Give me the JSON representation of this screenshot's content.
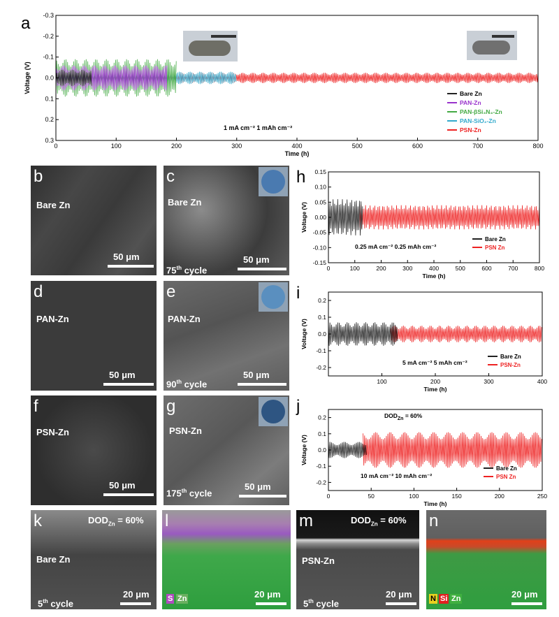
{
  "panel_letters": [
    "a",
    "b",
    "c",
    "d",
    "e",
    "f",
    "g",
    "h",
    "i",
    "j",
    "k",
    "l",
    "m",
    "n"
  ],
  "colors": {
    "bare_zn": "#222222",
    "pan_zn": "#9933cc",
    "pan_bsi3n4_zn": "#44aa44",
    "pan_sio2_zn": "#33aacc",
    "psn_zn": "#ee2222"
  },
  "chart_data": [
    {
      "id": "a",
      "type": "line",
      "xlabel": "Time (h)",
      "ylabel": "Voltage (V)",
      "xlim": [
        0,
        800
      ],
      "ylim": [
        -0.3,
        0.3
      ],
      "y_inverted": true,
      "x_ticks": [
        "0",
        "100",
        "200",
        "300",
        "400",
        "500",
        "600",
        "700",
        "800"
      ],
      "y_ticks": [
        "-0.3",
        "-0.2",
        "-0.1",
        "0.0",
        "0.1",
        "0.2",
        "0.3"
      ],
      "annotation": "1 mA cm⁻²   1 mAh cm⁻²",
      "legend_position": "bottom-right",
      "series": [
        {
          "name": "Bare Zn",
          "end_time": 60,
          "amplitude": 0.04
        },
        {
          "name": "PAN-Zn",
          "end_time": 185,
          "amplitude": 0.06
        },
        {
          "name": "PAN-βSi₃N₄-Zn",
          "end_time": 200,
          "amplitude": 0.09
        },
        {
          "name": "PAN-SiO₂-Zn",
          "end_time": 300,
          "amplitude": 0.03
        },
        {
          "name": "PSN-Zn",
          "end_time": 800,
          "amplitude": 0.025
        }
      ]
    },
    {
      "id": "h",
      "type": "line",
      "xlabel": "Time (h)",
      "ylabel": "Voltage (V)",
      "xlim": [
        0,
        800
      ],
      "ylim": [
        -0.15,
        0.15
      ],
      "x_ticks": [
        "0",
        "100",
        "200",
        "300",
        "400",
        "500",
        "600",
        "700",
        "800"
      ],
      "y_ticks": [
        "0.15",
        "0.10",
        "0.05",
        "0.00",
        "-0.05",
        "-0.10",
        "-0.15"
      ],
      "annotation": "0.25 mA cm⁻²   0.25 mAh cm⁻²",
      "legend_position": "bottom-right",
      "series": [
        {
          "name": "Bare Zn",
          "end_time": 130,
          "amplitude": 0.06
        },
        {
          "name": "PSN Zn",
          "end_time": 800,
          "amplitude": 0.04
        }
      ]
    },
    {
      "id": "i",
      "type": "line",
      "xlabel": "Time (h)",
      "ylabel": "Voltage (V)",
      "xlim": [
        0,
        400
      ],
      "ylim": [
        -0.25,
        0.25
      ],
      "x_ticks": [
        "100",
        "200",
        "300",
        "400"
      ],
      "y_ticks": [
        "0.2",
        "0.1",
        "0.0",
        "-0.1",
        "-0.2"
      ],
      "annotation": "5 mA cm⁻²   5 mAh cm⁻²",
      "legend_position": "bottom-right",
      "series": [
        {
          "name": "Bare Zn",
          "end_time": 130,
          "amplitude": 0.07
        },
        {
          "name": "PSN-Zn",
          "end_time": 400,
          "amplitude": 0.05
        }
      ]
    },
    {
      "id": "j",
      "type": "line",
      "xlabel": "Time (h)",
      "ylabel": "Voltage (V)",
      "xlim": [
        0,
        250
      ],
      "ylim": [
        -0.25,
        0.25
      ],
      "x_ticks": [
        "0",
        "50",
        "100",
        "150",
        "200",
        "250"
      ],
      "y_ticks": [
        "0.2",
        "0.1",
        "0.0",
        "-0.1",
        "-0.2"
      ],
      "annotation": "10 mA cm⁻²   10 mAh cm⁻²",
      "header_note": "DOD",
      "header_note_sub": "Zn",
      "header_note_value": " = 60%",
      "legend_position": "bottom-right",
      "series": [
        {
          "name": "Bare Zn",
          "end_time": 45,
          "amplitude": 0.05
        },
        {
          "name": "PSN Zn",
          "end_time": 250,
          "amplitude": 0.11
        }
      ]
    }
  ],
  "sem": {
    "b": {
      "label": "Bare Zn",
      "scale": "50 μm"
    },
    "c": {
      "label": "Bare Zn",
      "cycle_num": "75",
      "cycle_sup": "th",
      "cycle_word": " cycle",
      "scale": "50 μm"
    },
    "d": {
      "label": "PAN-Zn",
      "scale": "50 μm"
    },
    "e": {
      "label": "PAN-Zn",
      "cycle_num": "90",
      "cycle_sup": "th",
      "cycle_word": " cycle",
      "scale": "50 μm"
    },
    "f": {
      "label": "PSN-Zn",
      "scale": "50 μm"
    },
    "g": {
      "label": "PSN-Zn",
      "cycle_num": "175",
      "cycle_sup": "th",
      "cycle_word": " cycle",
      "scale": "50 μm"
    },
    "k": {
      "label": "Bare Zn",
      "dod": "DOD",
      "dod_sub": "Zn",
      "dod_value": " = 60%",
      "cycle_num": "5",
      "cycle_sup": "th",
      "cycle_word": " cycle",
      "scale": "20 μm"
    },
    "l": {
      "legend_s": "S",
      "legend_zn": "Zn",
      "scale": "20 μm"
    },
    "m": {
      "label": "PSN-Zn",
      "dod": "DOD",
      "dod_sub": "Zn",
      "dod_value": " = 60%",
      "cycle_num": "5",
      "cycle_sup": "th",
      "cycle_word": " cycle",
      "scale": "20 μm"
    },
    "n": {
      "legend_n": "N",
      "legend_si": "Si",
      "legend_zn": "Zn",
      "scale": "20 μm"
    }
  }
}
